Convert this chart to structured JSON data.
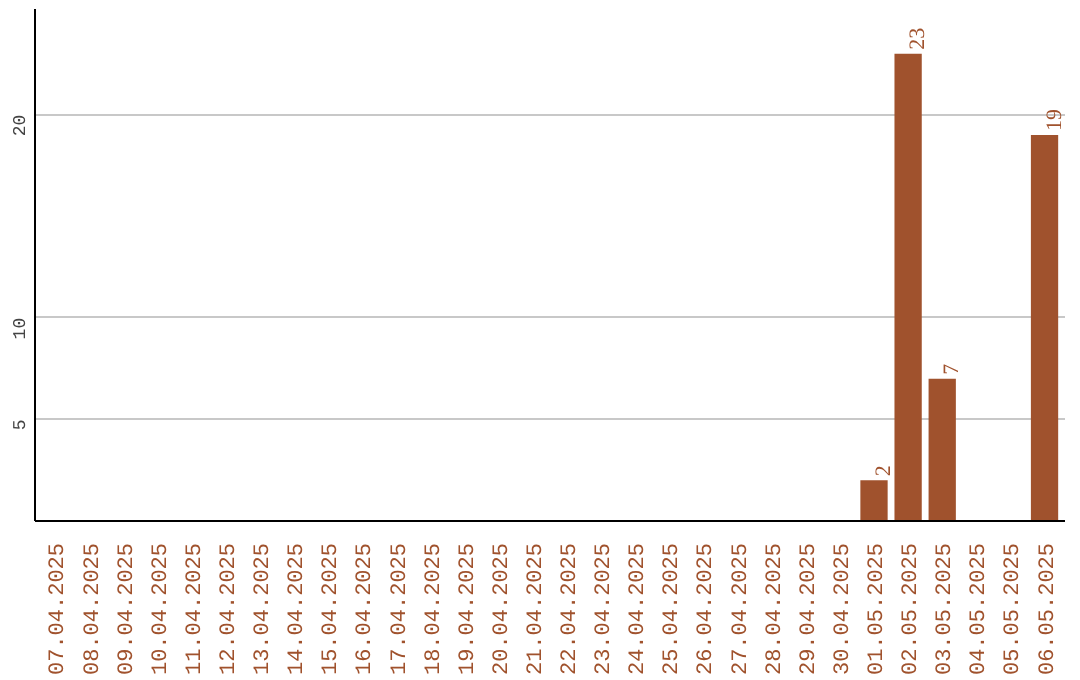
{
  "chart_data": {
    "type": "bar",
    "categories": [
      "07.04.2025",
      "08.04.2025",
      "09.04.2025",
      "10.04.2025",
      "11.04.2025",
      "12.04.2025",
      "13.04.2025",
      "14.04.2025",
      "15.04.2025",
      "16.04.2025",
      "17.04.2025",
      "18.04.2025",
      "19.04.2025",
      "20.04.2025",
      "21.04.2025",
      "22.04.2025",
      "23.04.2025",
      "24.04.2025",
      "25.04.2025",
      "26.04.2025",
      "27.04.2025",
      "28.04.2025",
      "29.04.2025",
      "30.04.2025",
      "01.05.2025",
      "02.05.2025",
      "03.05.2025",
      "04.05.2025",
      "05.05.2025",
      "06.05.2025"
    ],
    "values": [
      0,
      0,
      0,
      0,
      0,
      0,
      0,
      0,
      0,
      0,
      0,
      0,
      0,
      0,
      0,
      0,
      0,
      0,
      0,
      0,
      0,
      0,
      0,
      0,
      2,
      23,
      7,
      0,
      0,
      19
    ],
    "value_labels": [
      null,
      null,
      null,
      null,
      null,
      null,
      null,
      null,
      null,
      null,
      null,
      null,
      null,
      null,
      null,
      null,
      null,
      null,
      null,
      null,
      null,
      null,
      null,
      null,
      "2",
      "23",
      "7",
      null,
      null,
      "19"
    ],
    "color": "#a0522d",
    "ylim": [
      0,
      25.2
    ],
    "yticks": [
      5,
      10,
      20
    ],
    "grid": "y"
  }
}
